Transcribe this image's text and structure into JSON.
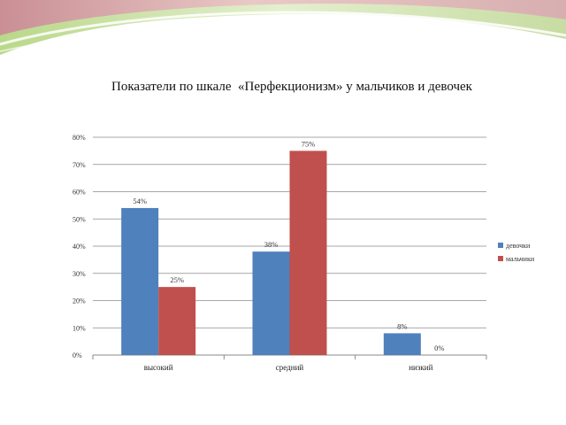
{
  "title": "Показатели по шкале  «Перфекционизм» у мальчиков и девочек",
  "colors": {
    "series_1": "#4f81bd",
    "series_2": "#c0504d",
    "banner_green": "#c9dfa0",
    "banner_pink": "#d4a0a4"
  },
  "chart_data": {
    "type": "bar",
    "title": "",
    "categories": [
      "высокий",
      "средний",
      "низкий"
    ],
    "series": [
      {
        "name": "девочки",
        "values": [
          54,
          38,
          8
        ],
        "labels": [
          "54%",
          "38%",
          "8%"
        ]
      },
      {
        "name": "мальчики",
        "values": [
          25,
          75,
          0
        ],
        "labels": [
          "25%",
          "75%",
          "0%"
        ]
      }
    ],
    "ylim": [
      0,
      80
    ],
    "yticks": [
      "0%",
      "10%",
      "20%",
      "30%",
      "40%",
      "50%",
      "60%",
      "70%",
      "80%"
    ],
    "grid": true,
    "legend": "right"
  }
}
